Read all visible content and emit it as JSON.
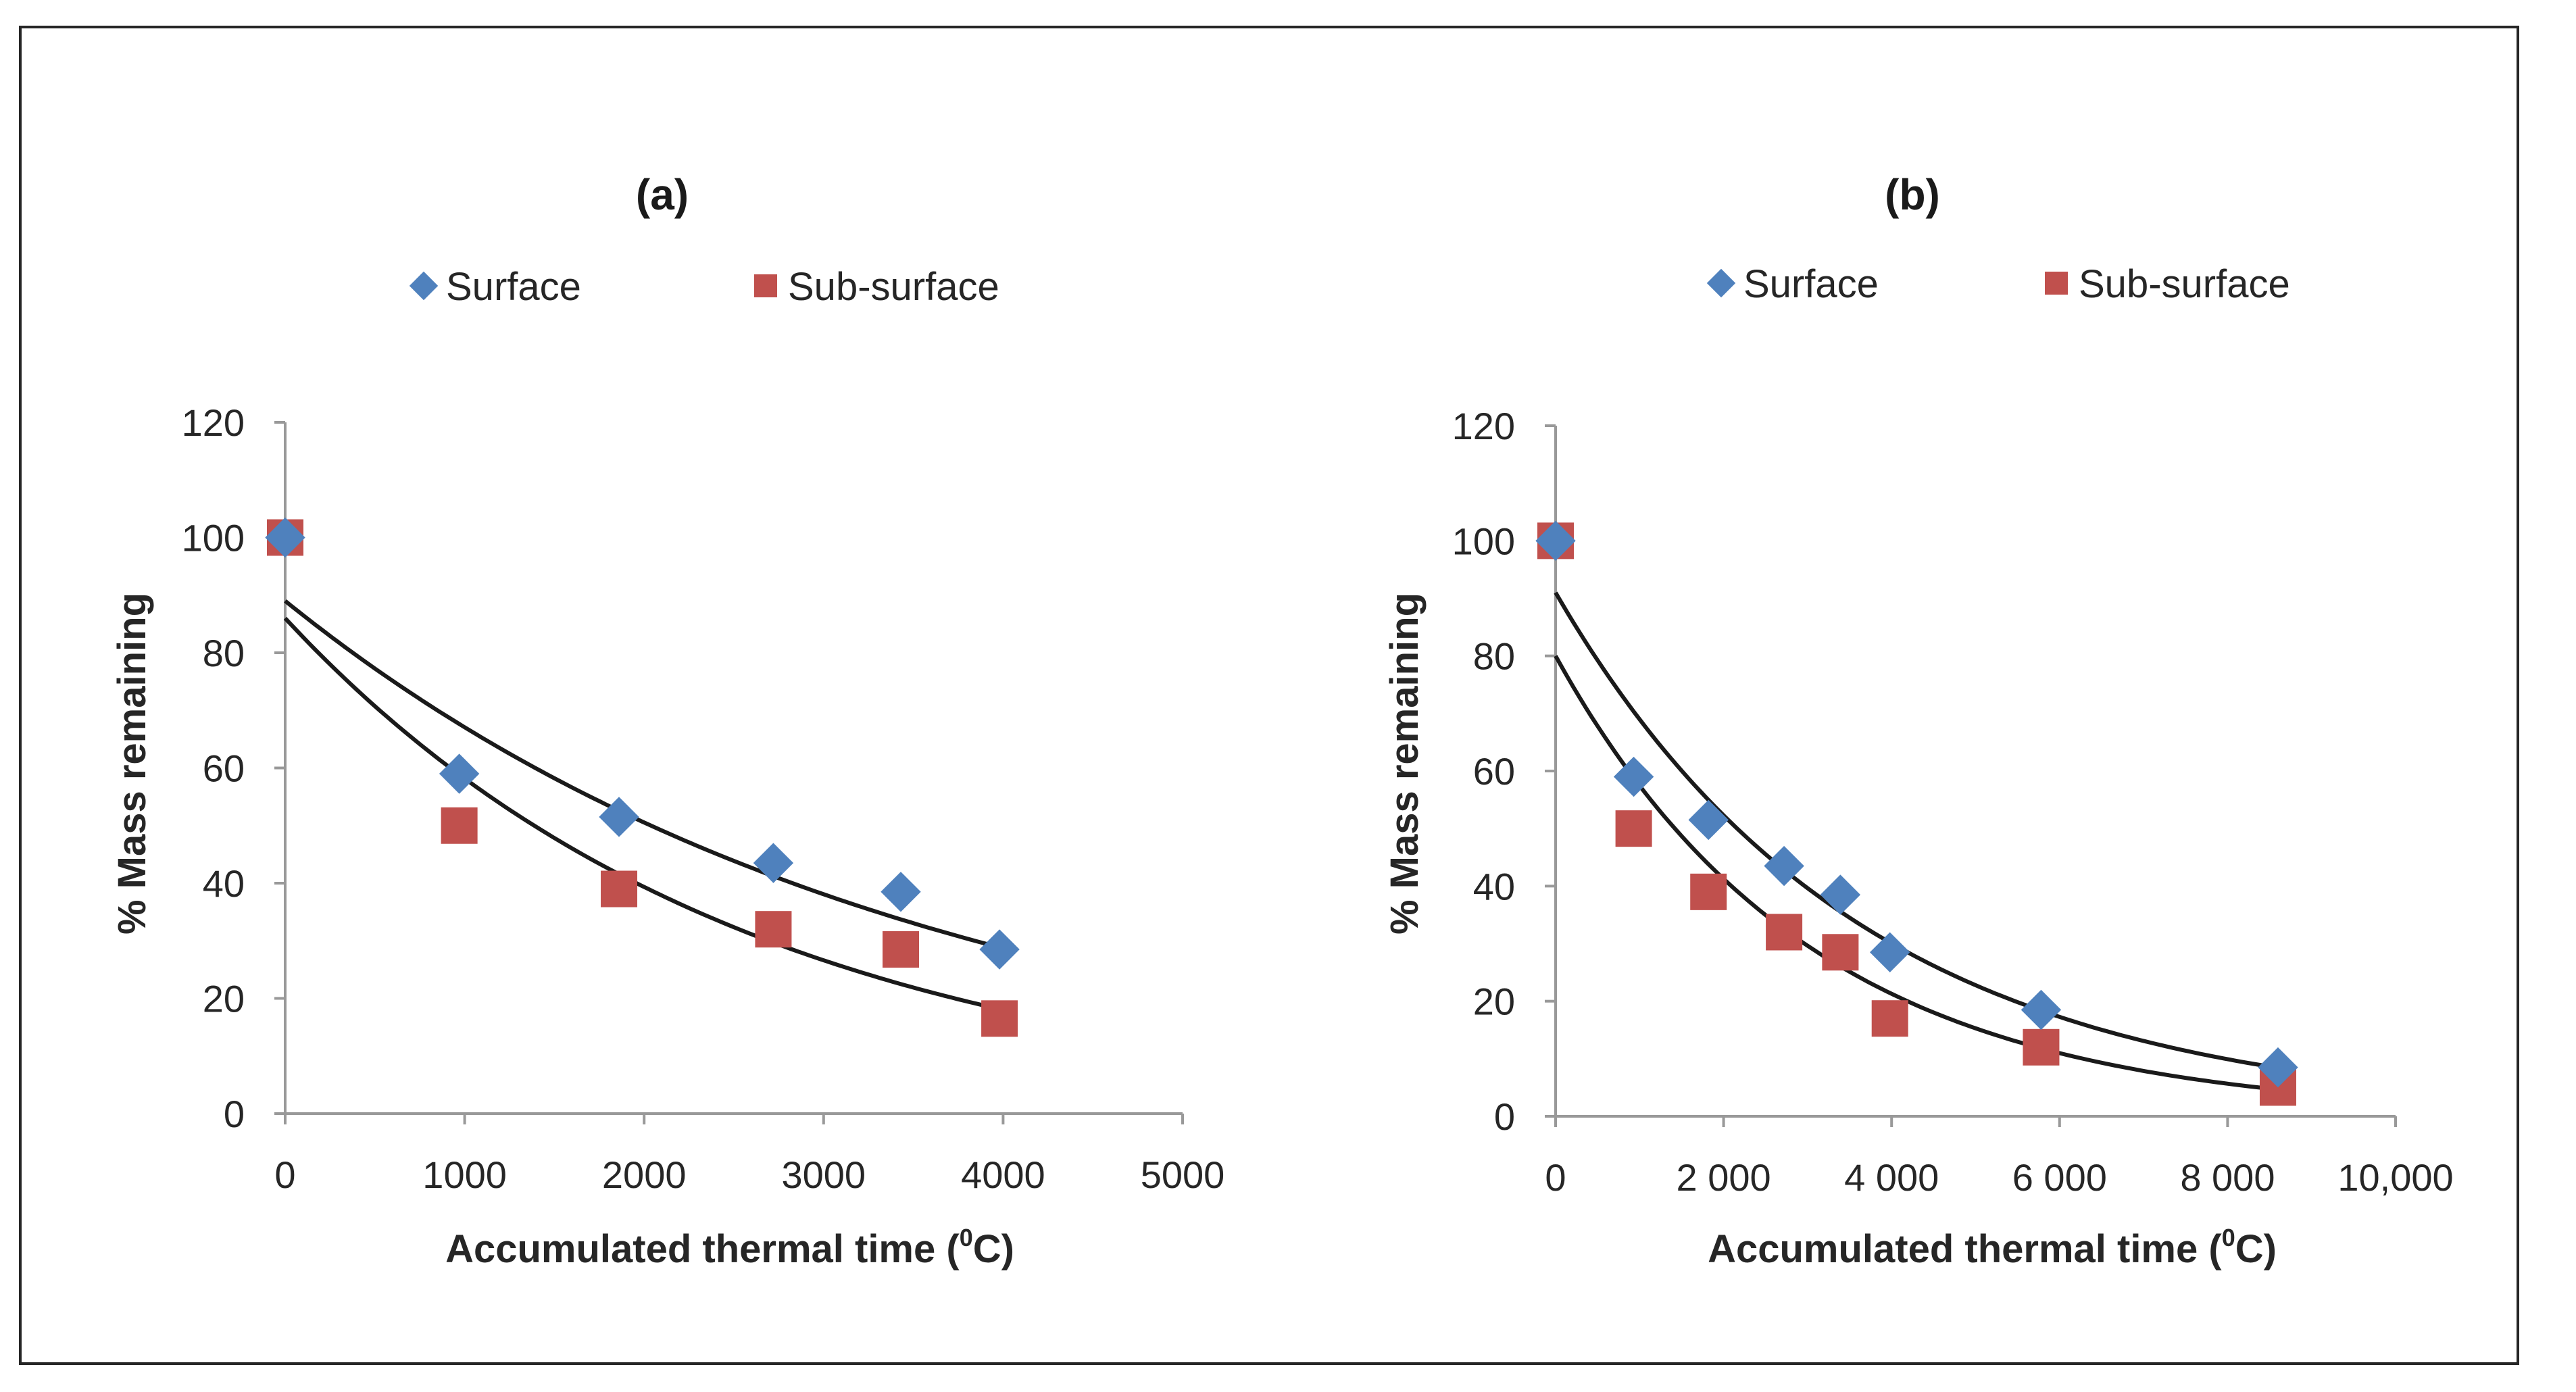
{
  "colors": {
    "surface": "#4f81bd",
    "subsurface": "#c0504d",
    "curve": "#1a1a1a",
    "axis": "#999999"
  },
  "chart_data": [
    {
      "type": "scatter",
      "title": "(a)",
      "legend": [
        "Surface",
        "Sub-surface"
      ],
      "legend_position": "top",
      "xlabel": "Accumulated thermal time (",
      "xlabel_sup": "0",
      "xlabel_end": "C)",
      "ylabel": "% Mass remaining",
      "xlim": [
        0,
        5000
      ],
      "ylim": [
        0,
        120
      ],
      "xticks": [
        0,
        1000,
        2000,
        3000,
        4000,
        5000
      ],
      "xtick_labels": [
        "0",
        "1000",
        "2000",
        "3000",
        "4000",
        "5000"
      ],
      "yticks": [
        0,
        20,
        40,
        60,
        80,
        100,
        120
      ],
      "ytick_labels": [
        "0",
        "20",
        "40",
        "60",
        "80",
        "100",
        "120"
      ],
      "series": [
        {
          "name": "Surface",
          "marker": "diamond",
          "x": [
            0,
            970,
            1860,
            2720,
            3430,
            3980
          ],
          "y": [
            100,
            59,
            51.5,
            43.5,
            38.5,
            28.5
          ]
        },
        {
          "name": "Sub-surface",
          "marker": "square",
          "x": [
            0,
            970,
            1860,
            2720,
            3430,
            3980
          ],
          "y": [
            100,
            50,
            39,
            32,
            28.5,
            16.5
          ]
        }
      ],
      "trendlines": [
        {
          "series": "Surface",
          "type": "exponential",
          "a": 89,
          "b": 0.000283,
          "x_range": [
            0,
            3980
          ]
        },
        {
          "series": "Sub-surface",
          "type": "exponential",
          "a": 86,
          "b": 0.000391,
          "x_range": [
            0,
            3980
          ]
        }
      ]
    },
    {
      "type": "scatter",
      "title": "(b)",
      "legend": [
        "Surface",
        "Sub-surface"
      ],
      "legend_position": "top",
      "xlabel": "Accumulated thermal time (",
      "xlabel_sup": "0",
      "xlabel_end": "C)",
      "ylabel": "% Mass remaining",
      "xlim": [
        0,
        10000
      ],
      "ylim": [
        0,
        120
      ],
      "xticks": [
        0,
        2000,
        4000,
        6000,
        8000,
        10000
      ],
      "xtick_labels": [
        "0",
        "2 000",
        "4 000",
        "6 000",
        "8 000",
        "10,000"
      ],
      "yticks": [
        0,
        20,
        40,
        60,
        80,
        100,
        120
      ],
      "ytick_labels": [
        "0",
        "20",
        "40",
        "60",
        "80",
        "100",
        "120"
      ],
      "series": [
        {
          "name": "Surface",
          "marker": "diamond",
          "x": [
            0,
            930,
            1820,
            2720,
            3390,
            3980,
            5780,
            8600
          ],
          "y": [
            100,
            59,
            51.5,
            43.5,
            38.5,
            28.5,
            18.5,
            8.5
          ]
        },
        {
          "name": "Sub-surface",
          "marker": "square",
          "x": [
            0,
            930,
            1820,
            2720,
            3390,
            3980,
            5780,
            8600
          ],
          "y": [
            100,
            50,
            39,
            32,
            28.5,
            17,
            12,
            5
          ]
        }
      ],
      "trendlines": [
        {
          "series": "Surface",
          "type": "exponential",
          "a": 91,
          "b": 0.000277,
          "x_range": [
            0,
            8600
          ]
        },
        {
          "series": "Sub-surface",
          "type": "exponential",
          "a": 80,
          "b": 0.000331,
          "x_range": [
            0,
            8600
          ]
        }
      ]
    }
  ]
}
